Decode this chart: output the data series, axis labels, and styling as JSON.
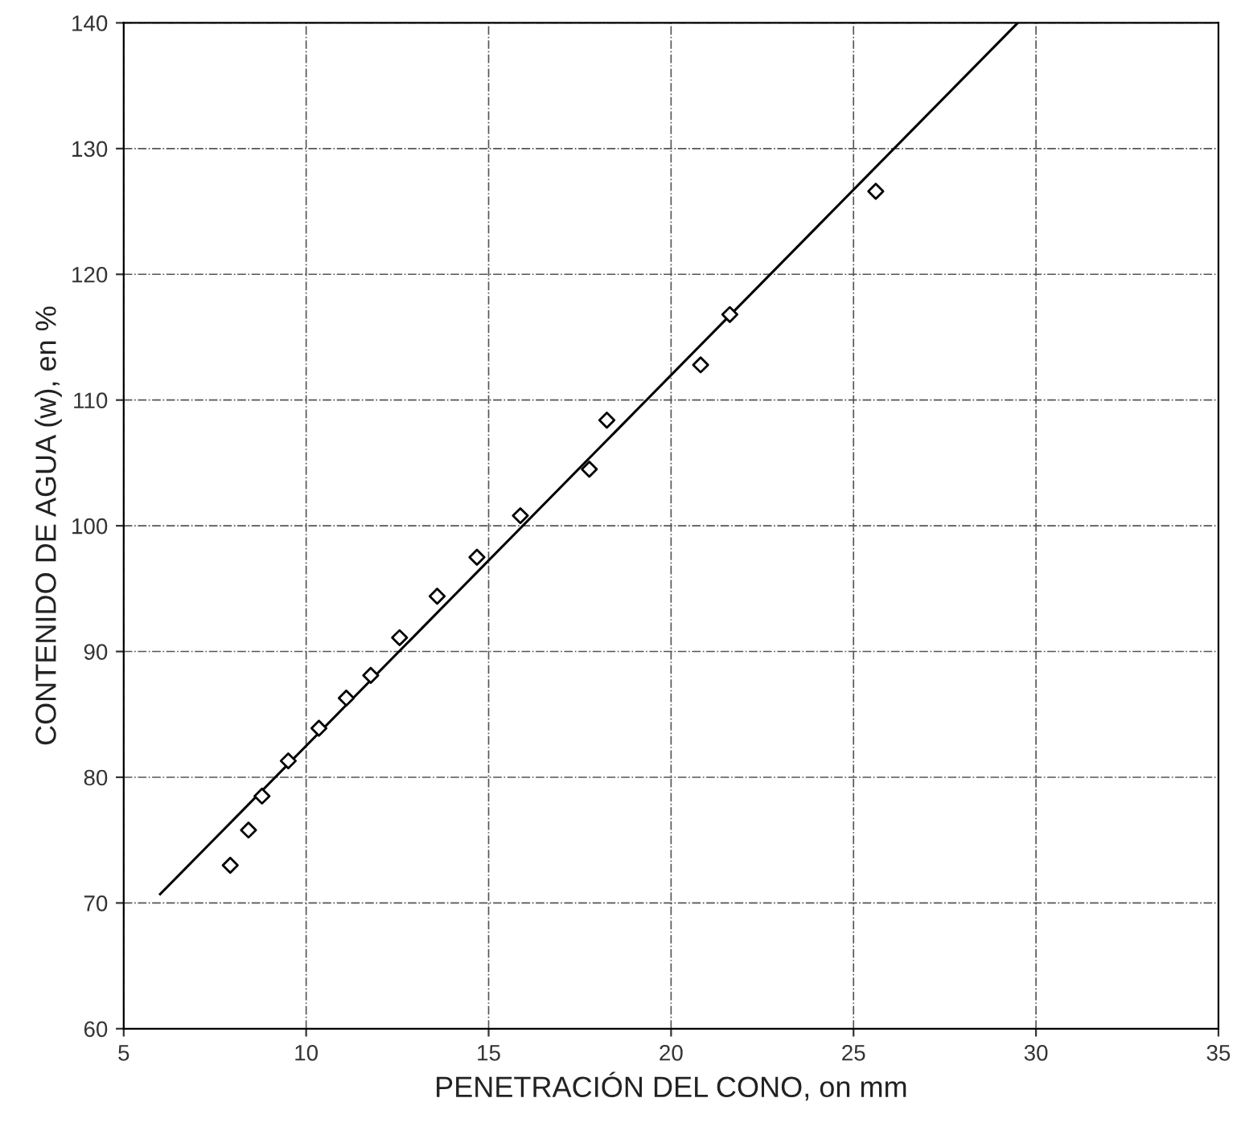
{
  "chart_data": {
    "type": "scatter",
    "xlabel": "PENETRACIÓN DEL CONO, on mm",
    "ylabel": "CONTENIDO DE AGUA (w), en %",
    "xlim": [
      5,
      35
    ],
    "xticks": [
      5,
      10,
      15,
      20,
      25,
      30,
      35
    ],
    "ylim": [
      60,
      140
    ],
    "yticks": [
      60,
      70,
      80,
      90,
      100,
      110,
      120,
      130,
      140
    ],
    "grid": true,
    "series": [
      {
        "color": "#000000",
        "marker": "diamond",
        "x": [
          7.92,
          8.42,
          8.79,
          9.51,
          10.35,
          11.1,
          11.77,
          12.56,
          13.59,
          14.68,
          15.87,
          17.76,
          18.24,
          20.81,
          21.61,
          25.61
        ],
        "values": [
          73.0,
          75.8,
          78.5,
          81.3,
          83.9,
          86.3,
          88.1,
          91.1,
          94.4,
          97.5,
          100.8,
          104.5,
          108.4,
          112.8,
          116.8,
          126.6
        ]
      },
      {
        "type": "line",
        "color": "#000000",
        "line_style": "solid",
        "marker": "none",
        "x": [
          6.0,
          29.5
        ],
        "values": [
          70.7,
          140
        ]
      }
    ]
  }
}
